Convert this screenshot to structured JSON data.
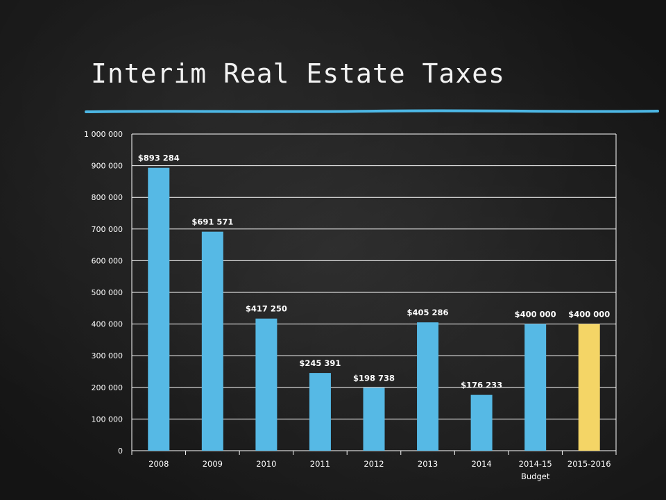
{
  "slide": {
    "title": "Interim Real Estate Taxes"
  },
  "colors": {
    "bar": "#56b9e5",
    "highlight": "#f4d566",
    "accent_line": "#4db8e6",
    "text": "#ffffff",
    "grid": "#ffffff"
  },
  "chart_data": {
    "type": "bar",
    "categories": [
      "2008",
      "2009",
      "2010",
      "2011",
      "2012",
      "2013",
      "2014",
      "2014-15",
      "2015-2016"
    ],
    "category_sublabels": [
      "",
      "",
      "",
      "",
      "",
      "",
      "",
      "Budget",
      ""
    ],
    "values": [
      893284,
      691571,
      417250,
      245391,
      198738,
      405286,
      176233,
      400000,
      400000
    ],
    "data_labels": [
      "$893 284",
      "$691 571",
      "$417 250",
      "$245 391",
      "$198 738",
      "$405 286",
      "$176 233",
      "$400 000",
      "$400 000"
    ],
    "highlight_index": 8,
    "ylim": [
      0,
      1000000
    ],
    "yticks": [
      0,
      100000,
      200000,
      300000,
      400000,
      500000,
      600000,
      700000,
      800000,
      900000,
      1000000
    ],
    "ytick_labels": [
      "0",
      "100 000",
      "200 000",
      "300 000",
      "400 000",
      "500 000",
      "600 000",
      "700 000",
      "800 000",
      "900 000",
      "1 000 000"
    ],
    "grid": true,
    "legend": "none"
  }
}
